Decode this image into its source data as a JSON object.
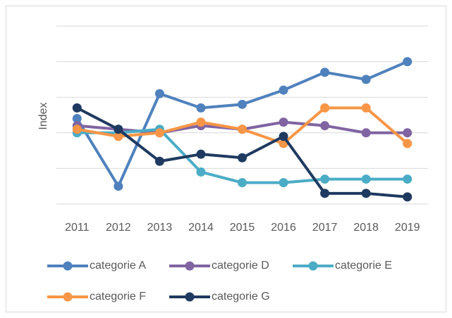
{
  "chart_data": {
    "type": "line",
    "y_label": "Index",
    "categories": [
      "2011",
      "2012",
      "2013",
      "2014",
      "2015",
      "2016",
      "2017",
      "2018",
      "2019"
    ],
    "series": [
      {
        "name": "categorie A",
        "color": "#4f81bd",
        "values": [
          2.4,
          0.5,
          3.1,
          2.7,
          2.8,
          3.2,
          3.7,
          3.5,
          4.0
        ]
      },
      {
        "name": "categorie D",
        "color": "#8064a2",
        "values": [
          2.2,
          2.1,
          2.0,
          2.2,
          2.1,
          2.3,
          2.2,
          2.0,
          2.0
        ]
      },
      {
        "name": "categorie E",
        "color": "#4bacc6",
        "values": [
          2.0,
          2.0,
          2.1,
          0.9,
          0.6,
          0.6,
          0.7,
          0.7,
          0.7
        ]
      },
      {
        "name": "categorie F",
        "color": "#f79646",
        "values": [
          2.1,
          1.9,
          2.0,
          2.3,
          2.1,
          1.7,
          2.7,
          2.7,
          1.7
        ]
      },
      {
        "name": "categorie G",
        "color": "#1f3a60",
        "values": [
          2.7,
          2.1,
          1.2,
          1.4,
          1.3,
          1.9,
          0.3,
          0.3,
          0.2
        ]
      }
    ],
    "ylim": [
      0,
      5
    ],
    "yticks": [
      0,
      1,
      2,
      3,
      4,
      5
    ],
    "grid": true
  }
}
